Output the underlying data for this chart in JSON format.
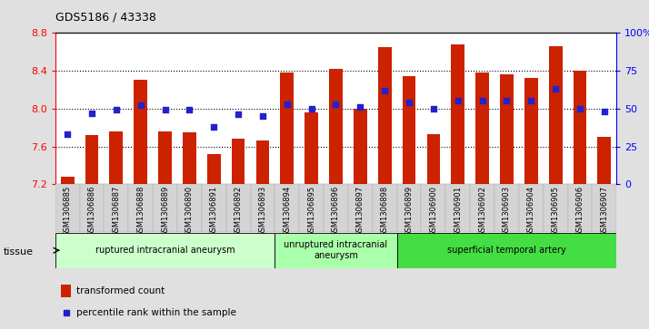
{
  "title": "GDS5186 / 43338",
  "samples": [
    "GSM1306885",
    "GSM1306886",
    "GSM1306887",
    "GSM1306888",
    "GSM1306889",
    "GSM1306890",
    "GSM1306891",
    "GSM1306892",
    "GSM1306893",
    "GSM1306894",
    "GSM1306895",
    "GSM1306896",
    "GSM1306897",
    "GSM1306898",
    "GSM1306899",
    "GSM1306900",
    "GSM1306901",
    "GSM1306902",
    "GSM1306903",
    "GSM1306904",
    "GSM1306905",
    "GSM1306906",
    "GSM1306907"
  ],
  "transformed_count": [
    7.28,
    7.72,
    7.76,
    8.3,
    7.76,
    7.75,
    7.52,
    7.68,
    7.66,
    8.38,
    7.96,
    8.42,
    8.0,
    8.65,
    8.34,
    7.73,
    8.68,
    8.38,
    8.36,
    8.32,
    8.66,
    8.4,
    7.7
  ],
  "percentile_rank": [
    33,
    47,
    49,
    52,
    49,
    49,
    38,
    46,
    45,
    53,
    50,
    53,
    51,
    62,
    54,
    50,
    55,
    55,
    55,
    55,
    63,
    50,
    48
  ],
  "bar_color": "#cc2200",
  "dot_color": "#2222cc",
  "ylim_left": [
    7.2,
    8.8
  ],
  "ylim_right": [
    0,
    100
  ],
  "yticks_left": [
    7.2,
    7.6,
    8.0,
    8.4,
    8.8
  ],
  "yticks_right": [
    0,
    25,
    50,
    75,
    100
  ],
  "ytick_labels_right": [
    "0",
    "25",
    "50",
    "75",
    "100%"
  ],
  "group_defs": [
    {
      "start": 0,
      "end": 9,
      "label": "ruptured intracranial aneurysm",
      "color": "#ccffcc"
    },
    {
      "start": 9,
      "end": 14,
      "label": "unruptured intracranial\naneurysm",
      "color": "#aaffaa"
    },
    {
      "start": 14,
      "end": 23,
      "label": "superficial temporal artery",
      "color": "#44dd44"
    }
  ],
  "tissue_label": "tissue",
  "legend_bar_label": "transformed count",
  "legend_dot_label": "percentile rank within the sample",
  "background_color": "#e0e0e0",
  "plot_bg_color": "#ffffff",
  "bar_width": 0.55,
  "dot_size": 20,
  "grid_yticks": [
    7.6,
    8.0,
    8.4
  ]
}
